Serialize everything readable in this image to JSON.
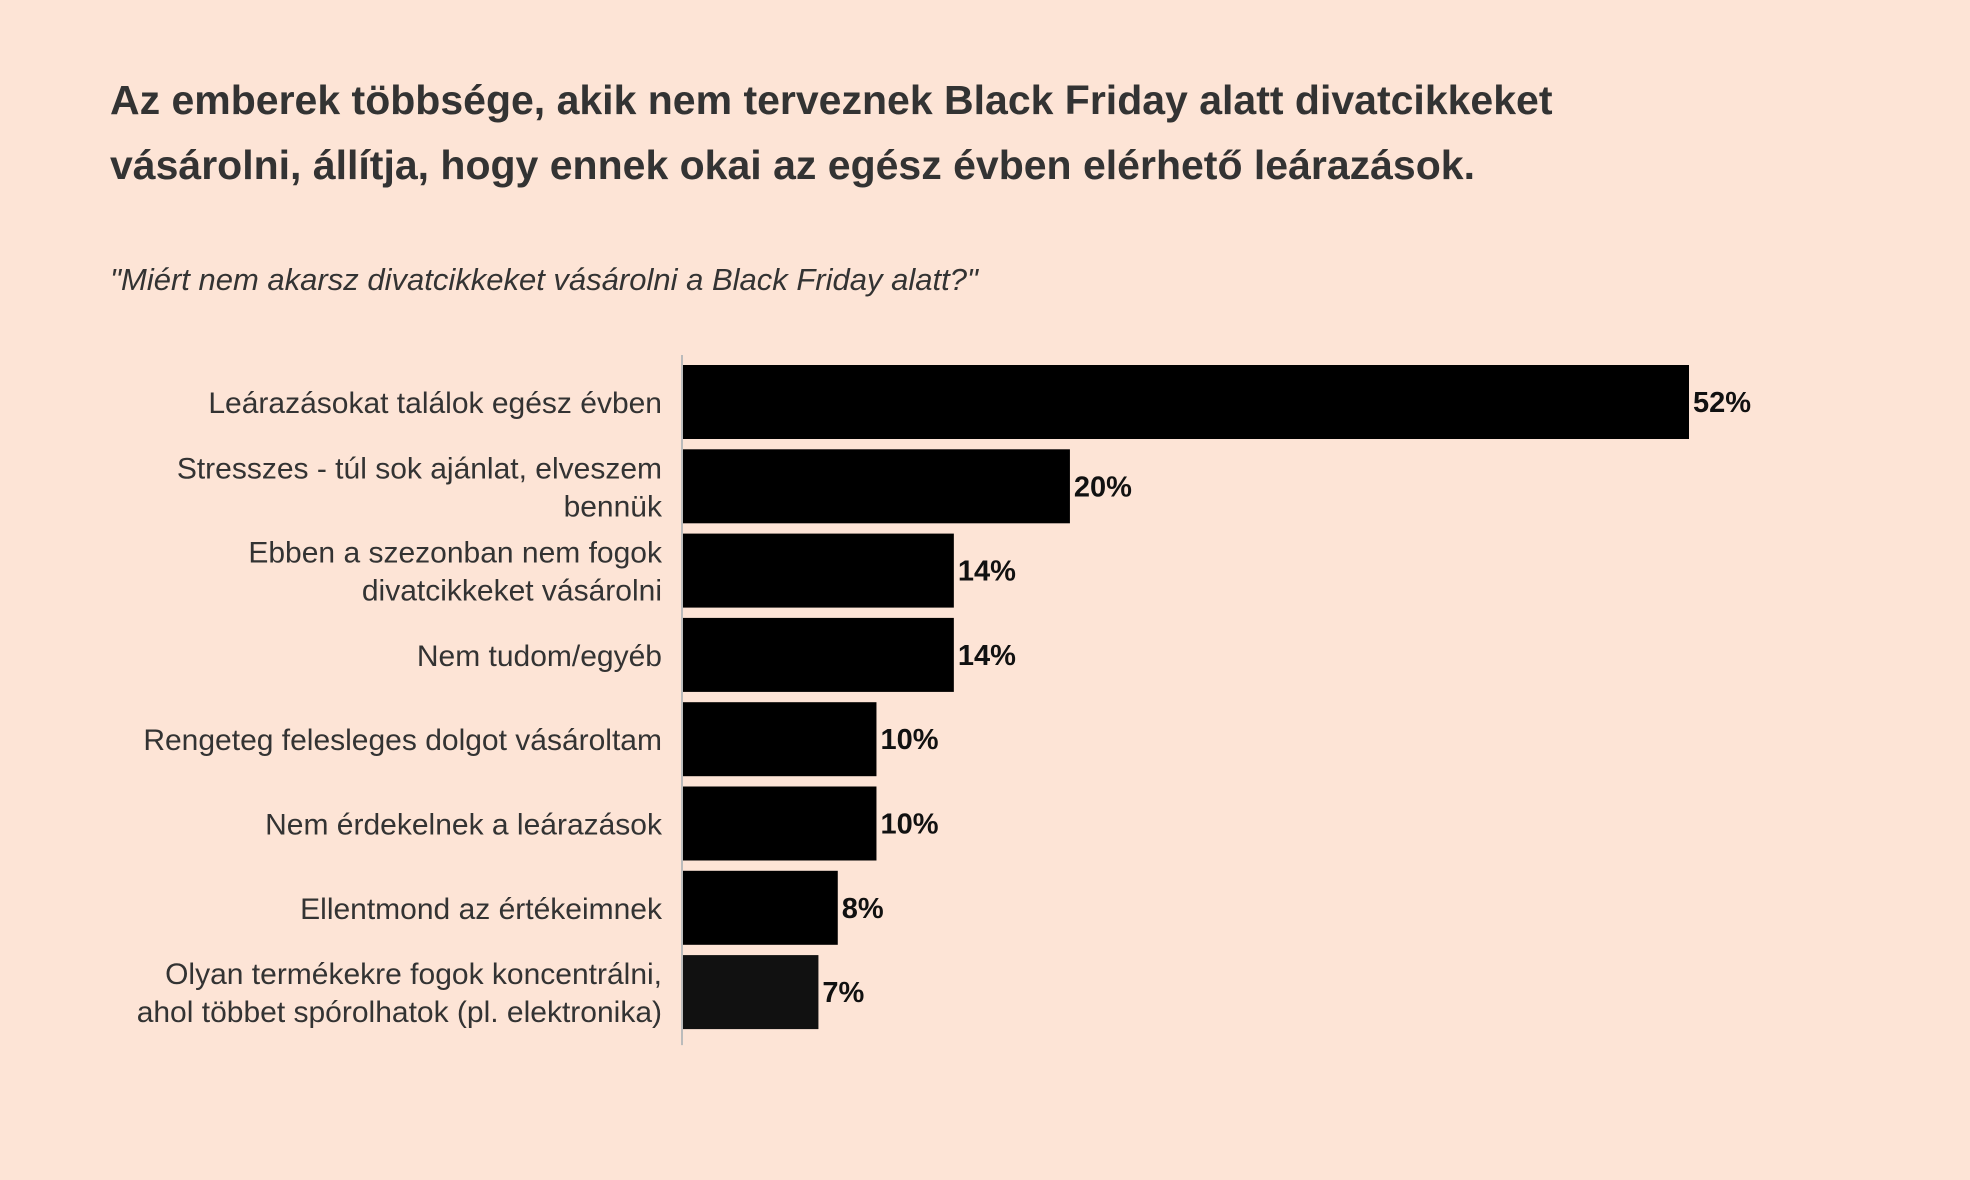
{
  "title": "Az emberek többsége, akik nem terveznek Black Friday alatt divatcikkeket vásárolni, állítja, hogy ennek okai az egész évben elérhető leárazások.",
  "subtitle": "\"Miért nem akarsz divatcikkeket vásárolni a Black Friday alatt?\"",
  "colors": {
    "background": "#fde4d6",
    "bar": "#000000",
    "bar_last": "#111111",
    "axis": "#bbbbbb",
    "text": "#333333"
  },
  "chart_data": {
    "type": "bar",
    "orientation": "horizontal",
    "title": "Az emberek többsége, akik nem terveznek Black Friday alatt divatcikkeket vásárolni, állítja, hogy ennek okai az egész évben elérhető leárazások.",
    "subtitle": "\"Miért nem akarsz divatcikkeket vásárolni a Black Friday alatt?\"",
    "xlabel": "",
    "ylabel": "",
    "categories": [
      [
        "Leárazásokat találok egész évben"
      ],
      [
        "Stresszes - túl sok ajánlat, elveszem",
        "bennük"
      ],
      [
        "Ebben a szezonban nem fogok",
        "divatcikkeket vásárolni"
      ],
      [
        "Nem tudom/egyéb"
      ],
      [
        "Rengeteg felesleges dolgot vásároltam"
      ],
      [
        "Nem érdekelnek a leárazások"
      ],
      [
        "Ellentmond az értékeimnek"
      ],
      [
        "Olyan termékekre fogok koncentrálni,",
        "ahol többet spórolhatok (pl. elektronika)"
      ]
    ],
    "values": [
      52,
      20,
      14,
      14,
      10,
      10,
      8,
      7
    ],
    "value_labels": [
      "52%",
      "20%",
      "14%",
      "14%",
      "10%",
      "10%",
      "8%",
      "7%"
    ],
    "unit": "%",
    "xlim": [
      0,
      52
    ],
    "grid": false,
    "legend": "none"
  }
}
